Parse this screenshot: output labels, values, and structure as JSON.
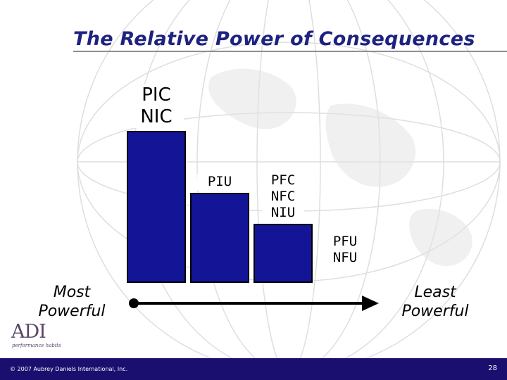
{
  "slide": {
    "title": "The Relative Power of Consequences"
  },
  "chart_data": {
    "type": "bar",
    "categories": [
      "PIC\nNIC",
      "PIU",
      "PFC\nNFC\nNIU",
      "PFU\nNFU"
    ],
    "values": [
      4,
      2,
      1,
      0
    ],
    "label_lines": [
      [
        "PIC",
        "NIC"
      ],
      [
        "PIU"
      ],
      [
        "PFC",
        "NFC",
        "NIU"
      ],
      [
        "PFU",
        "NFU"
      ]
    ],
    "scale": {
      "left_label": [
        "Most",
        "Powerful"
      ],
      "right_label": [
        "Least",
        "Powerful"
      ]
    },
    "bar_color": "#141496"
  },
  "logo": {
    "mark": "ADI",
    "tagline": "performance habits"
  },
  "footer": {
    "copyright": "© 2007 Aubrey Daniels International, Inc.",
    "page_number": "28"
  }
}
